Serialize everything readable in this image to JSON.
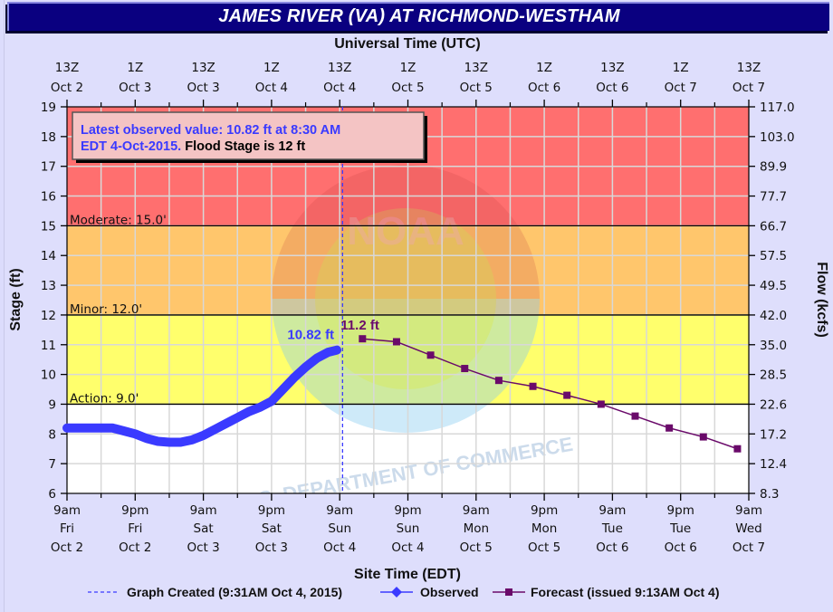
{
  "title": "JAMES RIVER (VA) AT RICHMOND-WESTHAM",
  "colors": {
    "title_bar": "#0a0080",
    "background": "#dedefc",
    "major_flood": "#ff6f6f",
    "moderate_flood": "#ffc66c",
    "minor_flood": "#ffff6c",
    "normal": "#ffffff",
    "observed": "#3a3aff",
    "forecast": "#6a0a6a",
    "graph_created": "#3a3aff"
  },
  "top_axis": {
    "title": "Universal Time (UTC)",
    "ticks": [
      {
        "hour": "13Z",
        "date": "Oct 2"
      },
      {
        "hour": "1Z",
        "date": "Oct 3"
      },
      {
        "hour": "13Z",
        "date": "Oct 3"
      },
      {
        "hour": "1Z",
        "date": "Oct 4"
      },
      {
        "hour": "13Z",
        "date": "Oct 4"
      },
      {
        "hour": "1Z",
        "date": "Oct 5"
      },
      {
        "hour": "13Z",
        "date": "Oct 5"
      },
      {
        "hour": "1Z",
        "date": "Oct 6"
      },
      {
        "hour": "13Z",
        "date": "Oct 6"
      },
      {
        "hour": "1Z",
        "date": "Oct 7"
      },
      {
        "hour": "13Z",
        "date": "Oct 7"
      }
    ]
  },
  "bottom_axis": {
    "title": "Site Time (EDT)",
    "ticks": [
      {
        "time": "9am",
        "day": "Fri",
        "date": "Oct 2"
      },
      {
        "time": "9pm",
        "day": "Fri",
        "date": "Oct 2"
      },
      {
        "time": "9am",
        "day": "Sat",
        "date": "Oct 3"
      },
      {
        "time": "9pm",
        "day": "Sat",
        "date": "Oct 3"
      },
      {
        "time": "9am",
        "day": "Sun",
        "date": "Oct 4"
      },
      {
        "time": "9pm",
        "day": "Sun",
        "date": "Oct 4"
      },
      {
        "time": "9am",
        "day": "Mon",
        "date": "Oct 5"
      },
      {
        "time": "9pm",
        "day": "Mon",
        "date": "Oct 5"
      },
      {
        "time": "9am",
        "day": "Tue",
        "date": "Oct 6"
      },
      {
        "time": "9pm",
        "day": "Tue",
        "date": "Oct 6"
      },
      {
        "time": "9am",
        "day": "Wed",
        "date": "Oct 7"
      }
    ]
  },
  "left_axis": {
    "title": "Stage (ft)",
    "ticks": [
      "19",
      "18",
      "17",
      "16",
      "15",
      "14",
      "13",
      "12",
      "11",
      "10",
      "9",
      "8",
      "7",
      "6"
    ]
  },
  "right_axis": {
    "title": "Flow (kcfs)",
    "ticks": [
      "117.0",
      "103.0",
      "89.9",
      "77.7",
      "66.7",
      "57.5",
      "49.5",
      "42.0",
      "35.0",
      "28.5",
      "22.6",
      "17.2",
      "12.4",
      "8.3"
    ]
  },
  "flood_categories": [
    {
      "label": "Moderate: 15.0'",
      "stage": 15.0
    },
    {
      "label": "Minor: 12.0'",
      "stage": 12.0
    },
    {
      "label": "Action: 9.0'",
      "stage": 9.0
    }
  ],
  "info_box": {
    "line1": "Latest observed value: 10.82 ft at 8:30 AM",
    "line2_blue": "EDT 4-Oct-2015.",
    "line2_black": "Flood Stage is 12 ft"
  },
  "annotations": {
    "observed_last": "10.82 ft",
    "forecast_crest": "11.2 ft"
  },
  "legend": {
    "graph_created": "Graph Created (9:31AM Oct 4, 2015)",
    "observed": "Observed",
    "forecast": "Forecast (issued 9:13AM Oct 4)"
  },
  "watermark": {
    "text_top": "NATIONAL OCEANIC AND ATMOSPHERIC ADMINISTRATION",
    "text_bottom": "U.S. DEPARTMENT OF COMMERCE",
    "center": "NOAA"
  },
  "chart_data": {
    "type": "line",
    "title": "JAMES RIVER (VA) AT RICHMOND-WESTHAM",
    "xlabel": "Site Time (EDT)",
    "xlabel_top": "Universal Time (UTC)",
    "ylabel": "Stage (ft)",
    "ylabel_right": "Flow (kcfs)",
    "ylim": [
      6,
      19
    ],
    "x_range_hours_from_9am_Oct2": [
      0,
      120
    ],
    "grid": true,
    "legend_position": "bottom",
    "flood_stages": {
      "action": 9.0,
      "minor": 12.0,
      "moderate": 15.0,
      "flood_stage": 12
    },
    "series": [
      {
        "name": "Observed",
        "x_hours": [
          0,
          4,
          8,
          10,
          12,
          14,
          16,
          18,
          20,
          22,
          24,
          26,
          28,
          30,
          32,
          34,
          36,
          38,
          40,
          42,
          44,
          46,
          47.5
        ],
        "values": [
          8.2,
          8.2,
          8.2,
          8.1,
          8.0,
          7.85,
          7.75,
          7.72,
          7.72,
          7.8,
          7.95,
          8.15,
          8.35,
          8.55,
          8.75,
          8.9,
          9.1,
          9.5,
          9.9,
          10.25,
          10.55,
          10.75,
          10.82
        ]
      },
      {
        "name": "Forecast (issued 9:13AM Oct 4)",
        "x_hours": [
          52,
          58,
          64,
          70,
          76,
          82,
          88,
          94,
          100,
          106,
          112,
          118
        ],
        "values": [
          11.2,
          11.1,
          10.65,
          10.2,
          9.8,
          9.6,
          9.3,
          9.0,
          8.6,
          8.2,
          7.9,
          7.5
        ]
      },
      {
        "name": "Graph Created (9:31AM Oct 4, 2015)",
        "x_hours": [
          48.5
        ],
        "values": []
      }
    ]
  }
}
